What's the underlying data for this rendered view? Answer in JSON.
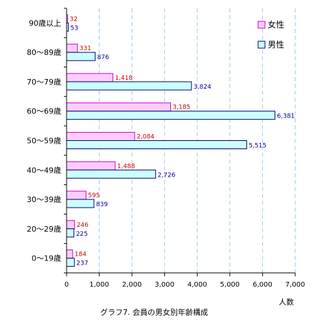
{
  "chart_data": {
    "type": "bar",
    "orientation": "horizontal",
    "categories": [
      "90歳以上",
      "80〜89歳",
      "70〜79歳",
      "60〜69歳",
      "50〜59歳",
      "40〜49歳",
      "30〜39歳",
      "20〜29歳",
      "0〜19歳"
    ],
    "series": [
      {
        "name": "女性",
        "values": [
          32,
          331,
          1418,
          3185,
          2084,
          1488,
          595,
          246,
          184
        ],
        "labels": [
          "32",
          "331",
          "1,418",
          "3,185",
          "2,084",
          "1,488",
          "595",
          "246",
          "184"
        ]
      },
      {
        "name": "男性",
        "values": [
          53,
          876,
          3824,
          6381,
          5515,
          2726,
          839,
          225,
          237
        ],
        "labels": [
          "53",
          "876",
          "3,824",
          "6,381",
          "5,515",
          "2,726",
          "839",
          "225",
          "237"
        ]
      }
    ],
    "xlim": [
      0,
      7000
    ],
    "xticks": [
      "0",
      "1,000",
      "2,000",
      "3,000",
      "4,000",
      "5,000",
      "6,000",
      "7,000"
    ],
    "xlabel": "人数",
    "title": "グラフ7. 会員の男女別年齢構成",
    "legend_position": "top-right",
    "grid": "vertical dashed",
    "colors": {
      "female_fill": "#ffccff",
      "female_stroke": "#cc00cc",
      "male_fill": "#ccffff",
      "male_stroke": "#000066",
      "female_label": "#cc0000",
      "male_label": "#000099",
      "grid": "#99ccee"
    }
  }
}
